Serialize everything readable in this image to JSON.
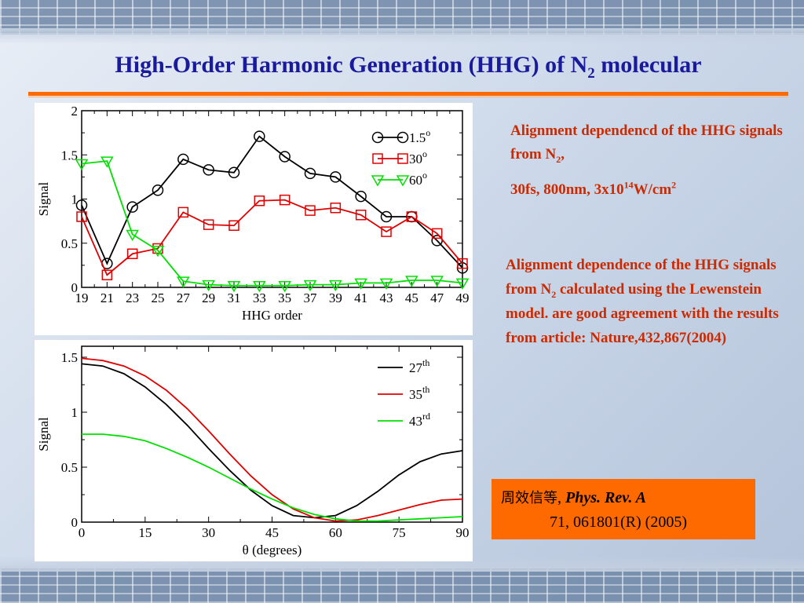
{
  "slide": {
    "title_main": "High-Order Harmonic Generation (HHG) of N",
    "title_sub": "2",
    "title_end": " molecular"
  },
  "notes": {
    "note1_pre": "Alignment dependencd of the HHG signals from N",
    "note1_sub": "2",
    "note1_post": ",",
    "note2_pre": "30fs, 800nm, 3x10",
    "note2_sup1": "14",
    "note2_mid": "W/cm",
    "note2_sup2": "2",
    "note3_pre": "Alignment dependence of the HHG signals from N",
    "note3_sub": "2",
    "note3_post": " calculated using the Lewenstein model. are good agreement with the results from article: Nature,432,867(2004)"
  },
  "citation": {
    "authors": "周效信等",
    "comma": ", ",
    "journal": "Phys. Rev. A",
    "ref": "71, 061801(R) (2005)"
  },
  "colors": {
    "accent_orange": "#ff6a00",
    "title_blue": "#1a1a9c",
    "note_red": "#cc2a00",
    "series_black": "#000000",
    "series_red": "#e00000",
    "series_green": "#00e000"
  },
  "chart_data": [
    {
      "type": "line",
      "xlabel": "HHG order",
      "ylabel": "Signal",
      "xlim": [
        19,
        49
      ],
      "ylim": [
        0,
        2
      ],
      "x_ticks": [
        "19",
        "21",
        "23",
        "25",
        "27",
        "29",
        "31",
        "33",
        "35",
        "37",
        "39",
        "41",
        "43",
        "45",
        "47",
        "49"
      ],
      "y_ticks": [
        "0",
        "0.5",
        "1",
        "1.5",
        "2"
      ],
      "legend_position": "top-right",
      "x": [
        19,
        21,
        23,
        25,
        27,
        29,
        31,
        33,
        35,
        37,
        39,
        41,
        43,
        45,
        47,
        49
      ],
      "series": [
        {
          "name": "1.5",
          "name_sup": "o",
          "marker": "circle",
          "color": "#000000",
          "values": [
            0.93,
            0.27,
            0.91,
            1.1,
            1.45,
            1.33,
            1.3,
            1.71,
            1.48,
            1.29,
            1.25,
            1.03,
            0.8,
            0.8,
            0.53,
            0.22
          ]
        },
        {
          "name": "30",
          "name_sup": "o",
          "marker": "square",
          "color": "#e00000",
          "values": [
            0.8,
            0.14,
            0.38,
            0.44,
            0.85,
            0.71,
            0.7,
            0.98,
            0.99,
            0.87,
            0.9,
            0.82,
            0.63,
            0.8,
            0.61,
            0.27
          ]
        },
        {
          "name": "60",
          "name_sup": "o",
          "marker": "triangle-down",
          "color": "#00e000",
          "values": [
            1.4,
            1.43,
            0.6,
            0.42,
            0.07,
            0.03,
            0.02,
            0.02,
            0.02,
            0.03,
            0.03,
            0.05,
            0.05,
            0.08,
            0.08,
            0.05
          ]
        }
      ]
    },
    {
      "type": "line",
      "xlabel": "θ (degrees)",
      "ylabel": "Signal",
      "xlim": [
        0,
        90
      ],
      "ylim": [
        0,
        1.6
      ],
      "x_ticks": [
        "0",
        "15",
        "30",
        "45",
        "60",
        "75",
        "90"
      ],
      "y_ticks": [
        "0",
        "0.5",
        "1",
        "1.5"
      ],
      "legend_position": "top-right",
      "x": [
        0,
        5,
        10,
        15,
        20,
        25,
        30,
        35,
        40,
        45,
        50,
        55,
        60,
        65,
        70,
        75,
        80,
        85,
        90
      ],
      "series": [
        {
          "name": "27",
          "name_sup": "th",
          "color": "#000000",
          "values": [
            1.44,
            1.42,
            1.35,
            1.23,
            1.07,
            0.88,
            0.67,
            0.47,
            0.29,
            0.15,
            0.06,
            0.04,
            0.06,
            0.15,
            0.28,
            0.43,
            0.55,
            0.62,
            0.65
          ]
        },
        {
          "name": "35",
          "name_sup": "th",
          "color": "#e00000",
          "values": [
            1.49,
            1.47,
            1.42,
            1.33,
            1.2,
            1.03,
            0.83,
            0.62,
            0.42,
            0.25,
            0.12,
            0.04,
            0.01,
            0.02,
            0.06,
            0.11,
            0.16,
            0.2,
            0.21
          ]
        },
        {
          "name": "43",
          "name_sup": "rd",
          "color": "#00e000",
          "values": [
            0.8,
            0.8,
            0.78,
            0.74,
            0.67,
            0.59,
            0.5,
            0.4,
            0.3,
            0.21,
            0.13,
            0.07,
            0.03,
            0.01,
            0.01,
            0.02,
            0.03,
            0.04,
            0.05
          ]
        }
      ]
    }
  ]
}
